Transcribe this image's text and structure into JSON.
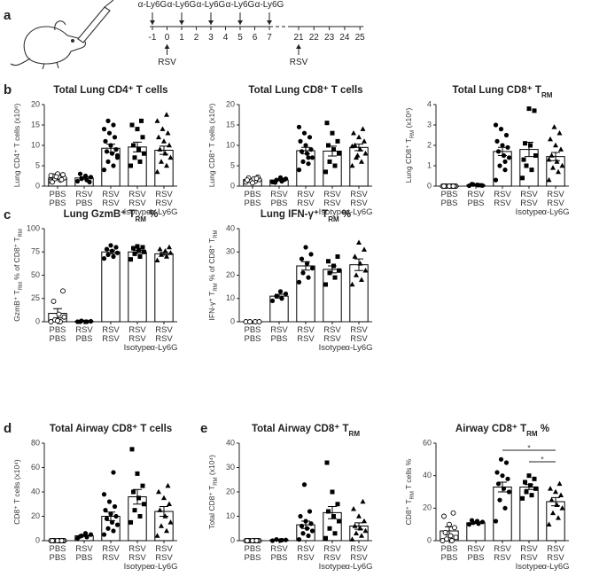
{
  "panels": [
    "a",
    "b",
    "c",
    "d",
    "e"
  ],
  "timeline": {
    "ticks": [
      -1,
      0,
      1,
      2,
      3,
      4,
      5,
      6,
      7,
      21,
      22,
      23,
      24,
      25
    ],
    "treatment": "α-Ly6G",
    "treatment_days": [
      -1,
      1,
      3,
      5,
      7
    ],
    "infection": "RSV",
    "infection_days": [
      0,
      21
    ]
  },
  "chart_data": [
    {
      "type": "bar",
      "title": [
        "Total Lung CD4⁺ T cells"
      ],
      "ylabel": [
        "Lung CD4⁺ T cells (x10⁶)"
      ],
      "categories": [
        [
          "PBS",
          "PBS"
        ],
        [
          "RSV",
          "PBS"
        ],
        [
          "RSV",
          "RSV"
        ],
        [
          "RSV",
          "RSV",
          "Isotype"
        ],
        [
          "RSV",
          "RSV",
          "α-Ly6G"
        ]
      ],
      "markers": [
        "open-circle",
        "circle",
        "circle",
        "square",
        "triangle"
      ],
      "color": "#000000",
      "values": [
        2.0,
        2.0,
        9.3,
        9.6,
        8.8
      ],
      "errors": [
        0.3,
        0.3,
        1.0,
        1.2,
        1.0
      ],
      "points": [
        [
          1.2,
          1.5,
          1.8,
          2.0,
          2.2,
          2.5,
          2.8,
          3.0,
          1.0,
          1.6,
          2.3,
          2.6
        ],
        [
          1.2,
          1.5,
          1.8,
          2.2,
          2.5,
          3.0,
          1.0
        ],
        [
          4,
          5,
          6,
          7,
          8,
          8.5,
          9,
          10,
          11,
          12,
          13,
          14,
          15,
          16,
          7.5
        ],
        [
          5,
          6,
          7,
          8,
          9,
          10,
          12,
          14,
          15,
          16
        ],
        [
          3.5,
          5,
          6,
          7,
          8,
          9,
          10,
          11,
          12,
          13,
          14,
          16,
          17.5
        ]
      ],
      "ylim": [
        0,
        20
      ],
      "yticks": [
        0,
        5,
        10,
        15,
        20
      ]
    },
    {
      "type": "bar",
      "title": [
        "Total Lung CD8⁺ T cells"
      ],
      "ylabel": [
        "Lung CD8⁺ T cells (x10⁶)"
      ],
      "categories": [
        [
          "PBS",
          "PBS"
        ],
        [
          "RSV",
          "PBS"
        ],
        [
          "RSV",
          "RSV"
        ],
        [
          "RSV",
          "RSV",
          "Isotype"
        ],
        [
          "RSV",
          "RSV",
          "α-Ly6G"
        ]
      ],
      "markers": [
        "open-circle",
        "circle",
        "circle",
        "square",
        "triangle"
      ],
      "color": "#000000",
      "values": [
        1.6,
        1.5,
        8.7,
        8.6,
        9.5
      ],
      "errors": [
        0.2,
        0.2,
        0.8,
        1.2,
        0.8
      ],
      "points": [
        [
          1,
          1.2,
          1.4,
          1.6,
          1.8,
          2,
          2.2,
          0.8,
          1.5,
          1.9
        ],
        [
          1,
          1.2,
          1.5,
          1.8,
          2.1,
          0.9,
          1.6
        ],
        [
          4,
          5.5,
          6,
          7,
          8,
          8.5,
          9,
          10,
          11,
          12,
          13,
          14.5,
          7
        ],
        [
          3.5,
          5,
          6,
          8,
          9,
          10,
          11,
          13,
          15.5
        ],
        [
          5,
          6,
          7,
          8,
          9,
          10,
          11,
          12,
          13,
          14,
          7.5,
          9.8
        ]
      ],
      "ylim": [
        0,
        20
      ],
      "yticks": [
        0,
        5,
        10,
        15,
        20
      ]
    },
    {
      "type": "bar",
      "title": [
        "Total Lung CD8⁺ T",
        {
          "text": "RM",
          "sub": true
        }
      ],
      "ylabel": [
        "Lung CD8⁺ T",
        {
          "text": "RM",
          "sub": true
        },
        " (x10⁶)"
      ],
      "categories": [
        [
          "PBS",
          "PBS"
        ],
        [
          "RSV",
          "PBS"
        ],
        [
          "RSV",
          "RSV"
        ],
        [
          "RSV",
          "RSV",
          "Isotype"
        ],
        [
          "RSV",
          "RSV",
          "α-Ly6G"
        ]
      ],
      "markers": [
        "open-circle",
        "circle",
        "circle",
        "square",
        "triangle"
      ],
      "color": "#000000",
      "values": [
        0,
        0.05,
        1.7,
        1.8,
        1.45
      ],
      "errors": [
        0,
        0.01,
        0.2,
        0.35,
        0.2
      ],
      "points": [
        [
          0,
          0,
          0,
          0,
          0,
          0,
          0,
          0,
          0,
          0
        ],
        [
          0.02,
          0.05,
          0.08,
          0.03,
          0.06,
          0.1,
          0.04
        ],
        [
          0.3,
          0.8,
          1.0,
          1.4,
          1.5,
          1.7,
          1.9,
          2.0,
          2.2,
          2.5,
          2.8,
          3.0,
          1.2
        ],
        [
          0.4,
          0.8,
          1.0,
          1.5,
          2.0,
          2.1,
          3.7,
          3.8,
          1.3
        ],
        [
          0.3,
          0.7,
          0.9,
          1.0,
          1.2,
          1.5,
          1.8,
          2.0,
          2.3,
          2.6,
          2.9,
          1.3
        ]
      ],
      "ylim": [
        0,
        4
      ],
      "yticks": [
        0,
        1,
        2,
        3,
        4
      ]
    },
    {
      "type": "bar",
      "title": [
        "Lung GzmB⁺ T",
        {
          "text": "RM",
          "sub": true
        },
        " %"
      ],
      "ylabel": [
        "GzmB⁺ T",
        {
          "text": "RM",
          "sub": true
        },
        " % of CD8⁺ T",
        {
          "text": "RM",
          "sub": true
        }
      ],
      "categories": [
        [
          "PBS",
          "PBS"
        ],
        [
          "RSV",
          "PBS"
        ],
        [
          "RSV",
          "RSV"
        ],
        [
          "RSV",
          "RSV",
          "Isotype"
        ],
        [
          "RSV",
          "RSV",
          "α-Ly6G"
        ]
      ],
      "markers": [
        "open-circle",
        "circle",
        "circle",
        "square",
        "triangle"
      ],
      "color": "#000000",
      "values": [
        9,
        0.5,
        75,
        75,
        73
      ],
      "errors": [
        5,
        0.2,
        2,
        1.5,
        1.5
      ],
      "points": [
        [
          0,
          0,
          2,
          5,
          8,
          22,
          33,
          1
        ],
        [
          0,
          0,
          1,
          0.5,
          0,
          0
        ],
        [
          68,
          70,
          72,
          74,
          76,
          78,
          80,
          82
        ],
        [
          67,
          70,
          73,
          75,
          77,
          79,
          80,
          81
        ],
        [
          66,
          70,
          72,
          74,
          76,
          78,
          80
        ]
      ],
      "ylim": [
        0,
        100
      ],
      "yticks": [
        0,
        25,
        50,
        75,
        100
      ]
    },
    {
      "type": "bar",
      "title": [
        "Lung IFN-γ⁺ T",
        {
          "text": "RM",
          "sub": true
        },
        " %"
      ],
      "ylabel": [
        "IFN-γ⁺ T",
        {
          "text": "RM",
          "sub": true
        },
        " % of CD8⁺ T",
        {
          "text": "RM",
          "sub": true
        }
      ],
      "categories": [
        [
          "PBS",
          "PBS"
        ],
        [
          "RSV",
          "PBS"
        ],
        [
          "RSV",
          "RSV"
        ],
        [
          "RSV",
          "RSV",
          "Isotype"
        ],
        [
          "RSV",
          "RSV",
          "α-Ly6G"
        ]
      ],
      "markers": [
        "open-circle",
        "circle",
        "circle",
        "square",
        "triangle"
      ],
      "color": "#000000",
      "values": [
        0,
        11,
        24,
        22.5,
        24.5
      ],
      "errors": [
        0,
        0.8,
        1.8,
        1.5,
        2.5
      ],
      "points": [
        [
          0,
          0,
          0,
          0
        ],
        [
          9,
          10,
          11,
          12,
          13
        ],
        [
          17,
          19,
          21,
          23,
          25,
          27,
          29,
          32
        ],
        [
          16,
          19,
          21,
          22,
          24,
          26,
          28
        ],
        [
          16,
          18,
          20,
          22,
          25,
          28,
          31,
          34
        ]
      ],
      "ylim": [
        0,
        40
      ],
      "yticks": [
        0,
        10,
        20,
        30,
        40
      ]
    },
    {
      "type": "bar",
      "title": [
        "Total Airway CD8⁺ T cells"
      ],
      "ylabel": [
        "CD8⁺ T cells (x10⁴)"
      ],
      "categories": [
        [
          "PBS",
          "PBS"
        ],
        [
          "RSV",
          "PBS"
        ],
        [
          "RSV",
          "RSV"
        ],
        [
          "RSV",
          "RSV",
          "Isotype"
        ],
        [
          "RSV",
          "RSV",
          "α-Ly6G"
        ]
      ],
      "markers": [
        "open-circle",
        "circle",
        "circle",
        "square",
        "triangle"
      ],
      "color": "#000000",
      "values": [
        0,
        4,
        20,
        36,
        24
      ],
      "errors": [
        0,
        0.5,
        3.5,
        6,
        4
      ],
      "points": [
        [
          0,
          0,
          0,
          0,
          0,
          0,
          0,
          0,
          0,
          0
        ],
        [
          2,
          3,
          4,
          5,
          6,
          3.5
        ],
        [
          5,
          8,
          10,
          13,
          15,
          18,
          20,
          22,
          25,
          28,
          32,
          38,
          56
        ],
        [
          15,
          20,
          25,
          30,
          35,
          40,
          45,
          55,
          75
        ],
        [
          4,
          8,
          12,
          15,
          20,
          25,
          30,
          35,
          40,
          45
        ]
      ],
      "ylim": [
        0,
        80
      ],
      "yticks": [
        0,
        20,
        40,
        60,
        80
      ]
    },
    {
      "type": "bar",
      "title": [
        "Total Airway CD8⁺ T",
        {
          "text": "RM",
          "sub": true
        }
      ],
      "ylabel": [
        "Total CD8⁺ T",
        {
          "text": "RM",
          "sub": true
        },
        " (x10⁴)"
      ],
      "categories": [
        [
          "PBS",
          "PBS"
        ],
        [
          "RSV",
          "PBS"
        ],
        [
          "RSV",
          "RSV"
        ],
        [
          "RSV",
          "RSV",
          "Isotype"
        ],
        [
          "RSV",
          "RSV",
          "α-Ly6G"
        ]
      ],
      "markers": [
        "open-circle",
        "circle",
        "circle",
        "square",
        "triangle"
      ],
      "color": "#000000",
      "values": [
        0,
        0.3,
        6.5,
        11.5,
        6
      ],
      "errors": [
        0,
        0.1,
        1.5,
        2.5,
        1.3
      ],
      "points": [
        [
          0,
          0,
          0,
          0,
          0,
          0,
          0,
          0,
          0,
          0
        ],
        [
          0,
          0.2,
          0.5,
          0.3,
          0.1
        ],
        [
          0.5,
          2,
          3,
          4,
          5,
          6,
          7,
          8,
          10,
          12,
          23
        ],
        [
          1,
          3,
          5,
          8,
          10,
          12,
          15,
          20,
          32
        ],
        [
          0.5,
          2,
          3,
          4,
          5,
          6,
          8,
          10,
          13,
          16
        ]
      ],
      "ylim": [
        0,
        40
      ],
      "yticks": [
        0,
        10,
        20,
        30,
        40
      ]
    },
    {
      "type": "bar",
      "title": [
        "Airway CD8⁺ T",
        {
          "text": "RM",
          "sub": true
        },
        " %"
      ],
      "ylabel": [
        "CD8⁺ T",
        {
          "text": "RM",
          "sub": true
        },
        " T cells %"
      ],
      "categories": [
        [
          "PBS",
          "PBS"
        ],
        [
          "RSV",
          "PBS"
        ],
        [
          "RSV",
          "RSV"
        ],
        [
          "RSV",
          "RSV",
          "Isotype"
        ],
        [
          "RSV",
          "RSV",
          "α-Ly6G"
        ]
      ],
      "markers": [
        "open-circle",
        "circle",
        "circle",
        "square",
        "triangle"
      ],
      "color": "#000000",
      "values": [
        6,
        11,
        33,
        33,
        24
      ],
      "errors": [
        2.5,
        0.5,
        3,
        1.5,
        2.5
      ],
      "points": [
        [
          0,
          0,
          1,
          2,
          3,
          5,
          8,
          10,
          15,
          17
        ],
        [
          10,
          10.5,
          11,
          11.5,
          12,
          12.5
        ],
        [
          12,
          20,
          25,
          30,
          32,
          35,
          38,
          40,
          42,
          48,
          50
        ],
        [
          26,
          28,
          30,
          32,
          34,
          36,
          38,
          40
        ],
        [
          10,
          14,
          17,
          20,
          22,
          25,
          28,
          30,
          32,
          35
        ]
      ],
      "ylim": [
        0,
        60
      ],
      "yticks": [
        0,
        20,
        40,
        60
      ],
      "significance": [
        {
          "groups": [
            2,
            4
          ],
          "label": "*"
        },
        {
          "groups": [
            3,
            4
          ],
          "label": "*"
        }
      ]
    }
  ]
}
